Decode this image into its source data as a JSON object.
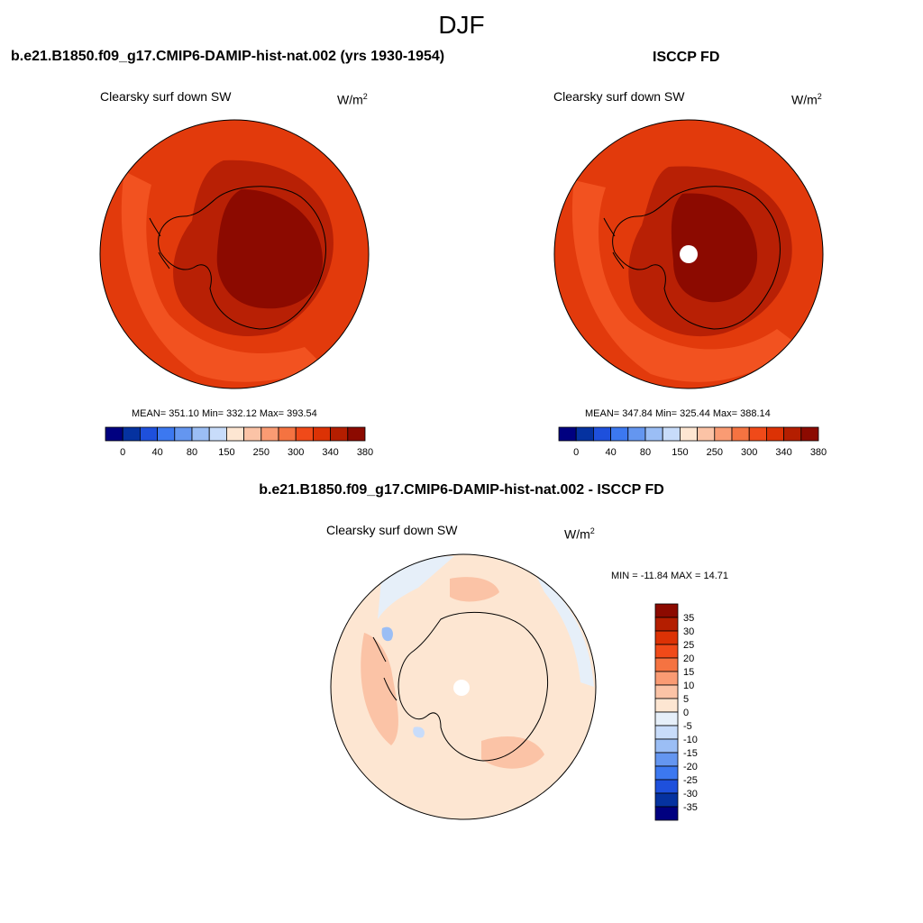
{
  "page": {
    "title": "DJF"
  },
  "panels": [
    {
      "title": "b.e21.B1850.f09_g17.CMIP6-DAMIP-hist-nat.002 (yrs 1930-1954)",
      "variable": "Clearsky surf down SW",
      "units_base": "W/m",
      "units_exp": "2",
      "stats": "MEAN= 351.10  Min= 332.12  Max= 393.54",
      "has_pole_hole": false
    },
    {
      "title": "ISCCP FD",
      "variable": "Clearsky surf down SW",
      "units_base": "W/m",
      "units_exp": "2",
      "stats": "MEAN= 347.84  Min= 325.44  Max= 388.14",
      "has_pole_hole": true
    },
    {
      "title": "b.e21.B1850.f09_g17.CMIP6-DAMIP-hist-nat.002 - ISCCP FD",
      "variable": "Clearsky surf down SW",
      "units_base": "W/m",
      "units_exp": "2",
      "stats": "MIN = -11.84 MAX =  14.71",
      "has_pole_hole": true
    }
  ],
  "abs_colorbar": {
    "colors": [
      "#000080",
      "#0532a0",
      "#1e50dc",
      "#3c78f0",
      "#6496f0",
      "#9bbef5",
      "#c8dcfa",
      "#fde6d2",
      "#fbc3a6",
      "#fa9b73",
      "#f57341",
      "#f04a19",
      "#dc3205",
      "#b41e00",
      "#8c0a00"
    ],
    "labels": [
      "0",
      "40",
      "80",
      "150",
      "250",
      "300",
      "340",
      "380"
    ]
  },
  "diff_colorbar": {
    "colors": [
      "#8c0a00",
      "#b41e00",
      "#dc3205",
      "#f04a19",
      "#f57341",
      "#fa9b73",
      "#fbc3a6",
      "#fde6d2",
      "#e6eff9",
      "#c8dcfa",
      "#9bbef5",
      "#6496f0",
      "#3c78f0",
      "#1e50dc",
      "#0532a0",
      "#000080"
    ],
    "labels": [
      "35",
      "30",
      "25",
      "20",
      "15",
      "10",
      "5",
      "0",
      "-5",
      "-10",
      "-15",
      "-20",
      "-25",
      "-30",
      "-35"
    ]
  }
}
